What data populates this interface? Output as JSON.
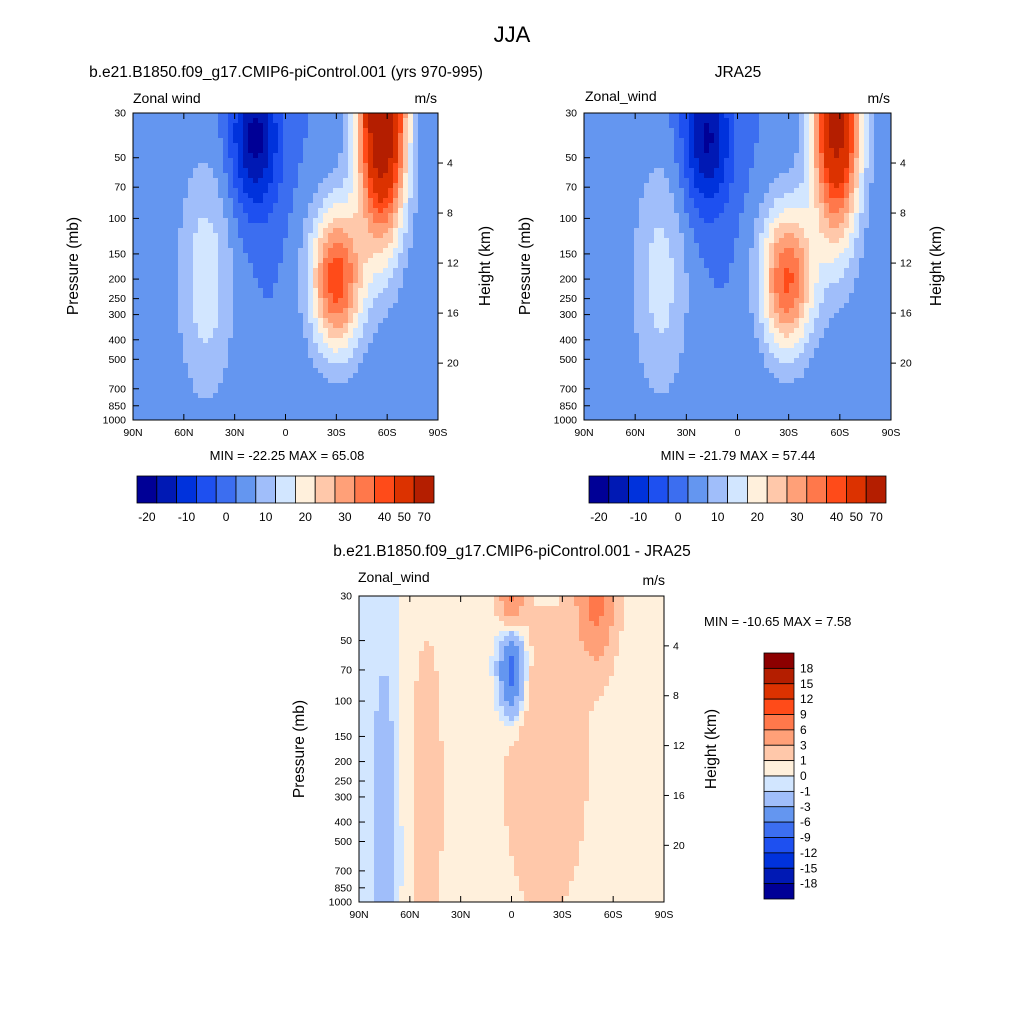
{
  "figure": {
    "title": "JJA"
  },
  "chart_data": [
    {
      "type": "heatmap",
      "title": "b.e21.B1850.f09_g17.CMIP6-piControl.001 (yrs 970-995)",
      "left_label": "Zonal wind",
      "units": "m/s",
      "ylabel": "Pressure (mb)",
      "ylabel_right": "Height (km)",
      "x_ticks": [
        "90N",
        "60N",
        "30N",
        "0",
        "30S",
        "60S",
        "90S"
      ],
      "y_ticks": [
        "30",
        "50",
        "70",
        "100",
        "150",
        "200",
        "250",
        "300",
        "400",
        "500",
        "700",
        "850",
        "1000"
      ],
      "y_right_ticks": [
        "20",
        "16",
        "12",
        "8",
        "4"
      ],
      "stats": "MIN = -22.25  MAX = 65.08",
      "colorbar_labels": [
        "-20",
        "-10",
        "0",
        "10",
        "20",
        "30",
        "40",
        "50",
        "70"
      ],
      "features": [
        {
          "lat": 47,
          "p": 200,
          "u": 13,
          "sx": 12,
          "sp": 1.0
        },
        {
          "lat": 18,
          "p": 40,
          "u": -22,
          "sx": 10,
          "sp": 0.6
        },
        {
          "lat": -57,
          "p": 30,
          "u": 65,
          "sx": 10,
          "sp": 1.0
        },
        {
          "lat": -30,
          "p": 200,
          "u": 38,
          "sx": 11,
          "sp": 0.6
        }
      ]
    },
    {
      "type": "heatmap",
      "title": "JRA25",
      "left_label": "Zonal_wind",
      "units": "m/s",
      "ylabel": "Pressure (mb)",
      "ylabel_right": "Height (km)",
      "x_ticks": [
        "90N",
        "60N",
        "30N",
        "0",
        "30S",
        "60S",
        "90S"
      ],
      "y_ticks": [
        "30",
        "50",
        "70",
        "100",
        "150",
        "200",
        "250",
        "300",
        "400",
        "500",
        "700",
        "850",
        "1000"
      ],
      "y_right_ticks": [
        "20",
        "16",
        "12",
        "8",
        "4"
      ],
      "stats": "MIN = -21.79  MAX = 57.44",
      "colorbar_labels": [
        "-20",
        "-10",
        "0",
        "10",
        "20",
        "30",
        "40",
        "50",
        "70"
      ],
      "features": [
        {
          "lat": 45,
          "p": 200,
          "u": 12,
          "sx": 12,
          "sp": 1.0
        },
        {
          "lat": 18,
          "p": 40,
          "u": -21,
          "sx": 10,
          "sp": 0.6
        },
        {
          "lat": -58,
          "p": 30,
          "u": 57,
          "sx": 10,
          "sp": 1.0
        },
        {
          "lat": -29,
          "p": 200,
          "u": 36,
          "sx": 11,
          "sp": 0.6
        }
      ]
    },
    {
      "type": "heatmap",
      "title": "b.e21.B1850.f09_g17.CMIP6-piControl.001 - JRA25",
      "left_label": "Zonal_wind",
      "units": "m/s",
      "ylabel": "Pressure (mb)",
      "ylabel_right": "Height (km)",
      "x_ticks": [
        "90N",
        "60N",
        "30N",
        "0",
        "30S",
        "60S",
        "90S"
      ],
      "y_ticks": [
        "30",
        "50",
        "70",
        "100",
        "150",
        "200",
        "250",
        "300",
        "400",
        "500",
        "700",
        "850",
        "1000"
      ],
      "y_right_ticks": [
        "20",
        "16",
        "12",
        "8",
        "4"
      ],
      "stats": "MIN = -10.65  MAX =   7.58",
      "colorbar_labels": [
        "18",
        "15",
        "12",
        "9",
        "6",
        "3",
        "1",
        "0",
        "-1",
        "-3",
        "-6",
        "-9",
        "-12",
        "-15",
        "-18"
      ],
      "features": [
        {
          "lat": 0,
          "p": 70,
          "u": -8,
          "sx": 5,
          "sp": 0.35
        },
        {
          "lat": -50,
          "p": 30,
          "u": 7,
          "sx": 8,
          "sp": 0.5
        },
        {
          "lat": 0,
          "p": 30,
          "u": 6,
          "sx": 5,
          "sp": 0.3
        },
        {
          "lat": -20,
          "p": 200,
          "u": 2.2,
          "sx": 20,
          "sp": 1.4
        },
        {
          "lat": 50,
          "p": 300,
          "u": 1.5,
          "sx": 10,
          "sp": 2.0
        },
        {
          "lat": 75,
          "p": 400,
          "u": -2,
          "sx": 6,
          "sp": 1.5
        }
      ]
    }
  ]
}
